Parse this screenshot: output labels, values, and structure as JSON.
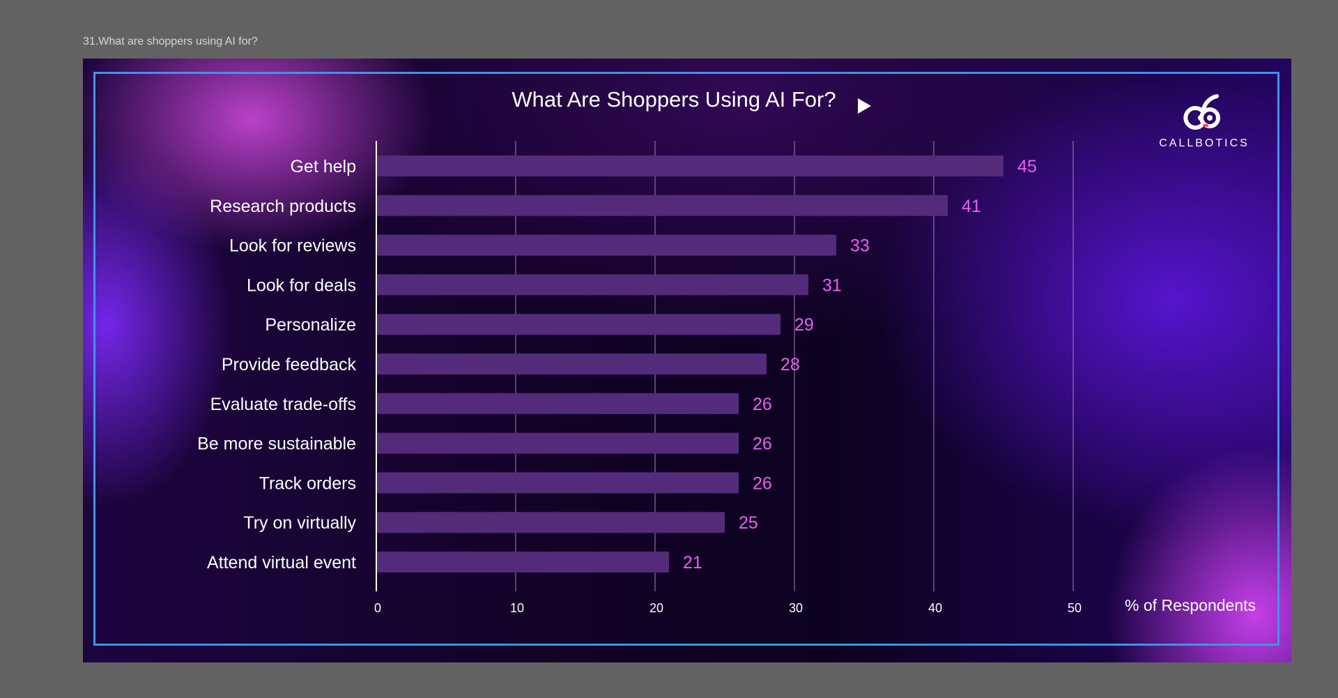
{
  "caption": "31.What are shoppers using AI for?",
  "brand": {
    "name": "CALLBOTICS",
    "logo_icon": "callbotics-robot-icon"
  },
  "colors": {
    "bar": "#542a7a",
    "value_label": "#ec5ef6",
    "frame": "#3f93e8",
    "text": "#ffffff",
    "gridline": "#a883c4"
  },
  "chart_data": {
    "type": "bar",
    "orientation": "horizontal",
    "title": "What Are Shoppers Using AI For?",
    "title_icon": "play-triangle-icon",
    "categories": [
      "Get help",
      "Research products",
      "Look for reviews",
      "Look for deals",
      "Personalize",
      "Provide feedback",
      "Evaluate trade-offs",
      "Be more sustainable",
      "Track orders",
      "Try on virtually",
      "Attend virtual event"
    ],
    "values": [
      45,
      41,
      33,
      31,
      29,
      28,
      26,
      26,
      26,
      25,
      21
    ],
    "xlabel": "% of Respondents",
    "ylabel": "",
    "xticks": [
      0,
      10,
      20,
      30,
      40,
      50
    ],
    "xlim": [
      0,
      50
    ],
    "grid": true,
    "legend": "none"
  }
}
